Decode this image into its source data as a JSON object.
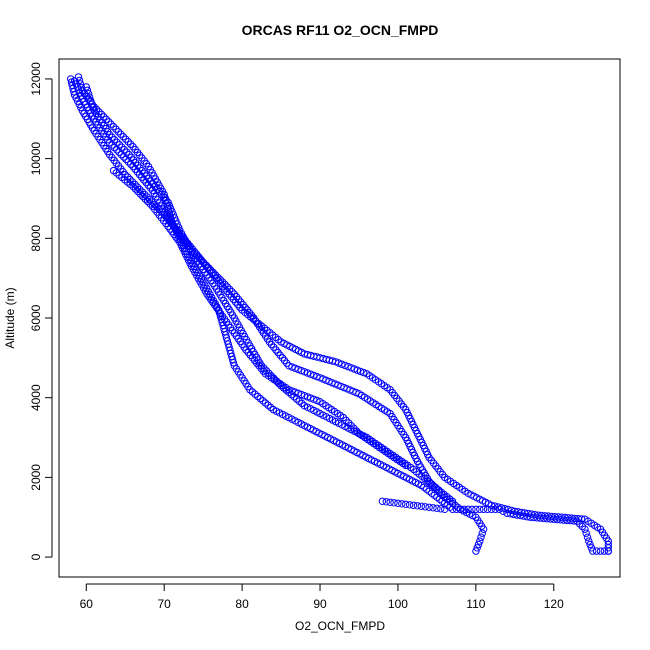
{
  "chart_data": {
    "type": "scatter",
    "title": "ORCAS RF11 O2_OCN_FMPD",
    "xlabel": "O2_OCN_FMPD",
    "ylabel": "Altitude (m)",
    "xlim": [
      56.5,
      128.5
    ],
    "ylim": [
      -500,
      12500
    ],
    "xticks": [
      60,
      70,
      80,
      90,
      100,
      110,
      120
    ],
    "yticks": [
      0,
      2000,
      4000,
      6000,
      8000,
      10000,
      12000
    ],
    "grid": false,
    "marker": "open-circle",
    "color": "#0000ff",
    "series": [
      {
        "points": [
          [
            58,
            12000
          ],
          [
            58.5,
            11600
          ],
          [
            59.5,
            11200
          ],
          [
            61,
            10700
          ],
          [
            63,
            10100
          ],
          [
            65,
            9600
          ],
          [
            67.5,
            9100
          ],
          [
            70,
            8600
          ],
          [
            72.5,
            8000
          ],
          [
            75,
            7400
          ],
          [
            77.5,
            6800
          ],
          [
            80,
            6200
          ],
          [
            82.5,
            5800
          ],
          [
            85,
            5400
          ],
          [
            88,
            5100
          ],
          [
            92,
            4900
          ],
          [
            96,
            4600
          ],
          [
            99,
            4200
          ],
          [
            101,
            3700
          ],
          [
            102.5,
            3100
          ],
          [
            104,
            2500
          ],
          [
            106,
            2000
          ],
          [
            109,
            1600
          ],
          [
            112,
            1300
          ],
          [
            115,
            1150
          ],
          [
            118,
            1050
          ],
          [
            121,
            1000
          ],
          [
            124,
            950
          ],
          [
            126,
            700
          ],
          [
            127,
            400
          ],
          [
            127,
            150
          ]
        ]
      },
      {
        "points": [
          [
            58.5,
            11950
          ],
          [
            59.5,
            11500
          ],
          [
            61,
            11000
          ],
          [
            63,
            10400
          ],
          [
            66,
            9800
          ],
          [
            68.5,
            9200
          ],
          [
            70.5,
            8500
          ],
          [
            73,
            7800
          ],
          [
            76,
            7200
          ],
          [
            79,
            6600
          ],
          [
            81.5,
            6000
          ],
          [
            83.5,
            5400
          ],
          [
            86,
            4800
          ],
          [
            90,
            4500
          ],
          [
            95,
            4100
          ],
          [
            99,
            3600
          ],
          [
            101,
            3000
          ],
          [
            102.5,
            2400
          ],
          [
            104,
            1900
          ],
          [
            106,
            1500
          ],
          [
            108,
            1200
          ],
          [
            110,
            1000
          ],
          [
            111,
            700
          ],
          [
            110.5,
            400
          ],
          [
            110,
            150
          ]
        ]
      },
      {
        "points": [
          [
            59,
            12050
          ],
          [
            59.5,
            11700
          ],
          [
            61,
            11300
          ],
          [
            63.5,
            10800
          ],
          [
            66,
            10300
          ],
          [
            68,
            9800
          ],
          [
            70,
            9100
          ],
          [
            71,
            8400
          ],
          [
            73,
            7600
          ],
          [
            75,
            6900
          ],
          [
            77,
            6200
          ],
          [
            78,
            5500
          ],
          [
            79,
            4800
          ],
          [
            81,
            4200
          ],
          [
            84,
            3700
          ],
          [
            88,
            3300
          ],
          [
            91,
            3000
          ],
          [
            94,
            2700
          ],
          [
            97,
            2400
          ],
          [
            100,
            2100
          ],
          [
            103,
            1800
          ],
          [
            105,
            1500
          ],
          [
            107,
            1200
          ],
          [
            108,
            1200
          ]
        ]
      },
      {
        "points": [
          [
            60,
            11800
          ],
          [
            61,
            11200
          ],
          [
            63,
            10600
          ],
          [
            65.5,
            10100
          ],
          [
            68,
            9500
          ],
          [
            70.5,
            8900
          ],
          [
            72,
            8200
          ],
          [
            74,
            7500
          ],
          [
            76.5,
            6800
          ],
          [
            79,
            6000
          ],
          [
            81,
            5300
          ],
          [
            82.5,
            4800
          ],
          [
            85,
            4300
          ],
          [
            88,
            3800
          ],
          [
            92,
            3400
          ],
          [
            96,
            3000
          ],
          [
            99,
            2600
          ],
          [
            102,
            2200
          ],
          [
            104.5,
            1800
          ],
          [
            107,
            1400
          ]
        ]
      },
      {
        "points": [
          [
            63.5,
            9700
          ],
          [
            66,
            9300
          ],
          [
            68.5,
            8800
          ],
          [
            70.5,
            8300
          ],
          [
            72,
            7900
          ],
          [
            73.5,
            7300
          ],
          [
            75.5,
            6600
          ],
          [
            78,
            5900
          ],
          [
            80.5,
            5200
          ],
          [
            83,
            4600
          ],
          [
            86,
            4200
          ],
          [
            90,
            3900
          ],
          [
            93,
            3500
          ],
          [
            95,
            3100
          ],
          [
            98,
            2700
          ],
          [
            101,
            2300
          ]
        ]
      },
      {
        "points": [
          [
            108,
            1200
          ],
          [
            110,
            1200
          ],
          [
            112,
            1200
          ],
          [
            113,
            1200
          ],
          [
            114,
            1100
          ],
          [
            117,
            1000
          ],
          [
            120,
            950
          ],
          [
            123,
            900
          ],
          [
            124,
            700
          ],
          [
            124.5,
            400
          ],
          [
            125,
            150
          ],
          [
            126,
            150
          ],
          [
            127,
            150
          ]
        ]
      },
      {
        "points": [
          [
            98,
            1400
          ],
          [
            100,
            1350
          ],
          [
            102,
            1300
          ],
          [
            104,
            1250
          ],
          [
            106,
            1200
          ]
        ]
      }
    ]
  }
}
